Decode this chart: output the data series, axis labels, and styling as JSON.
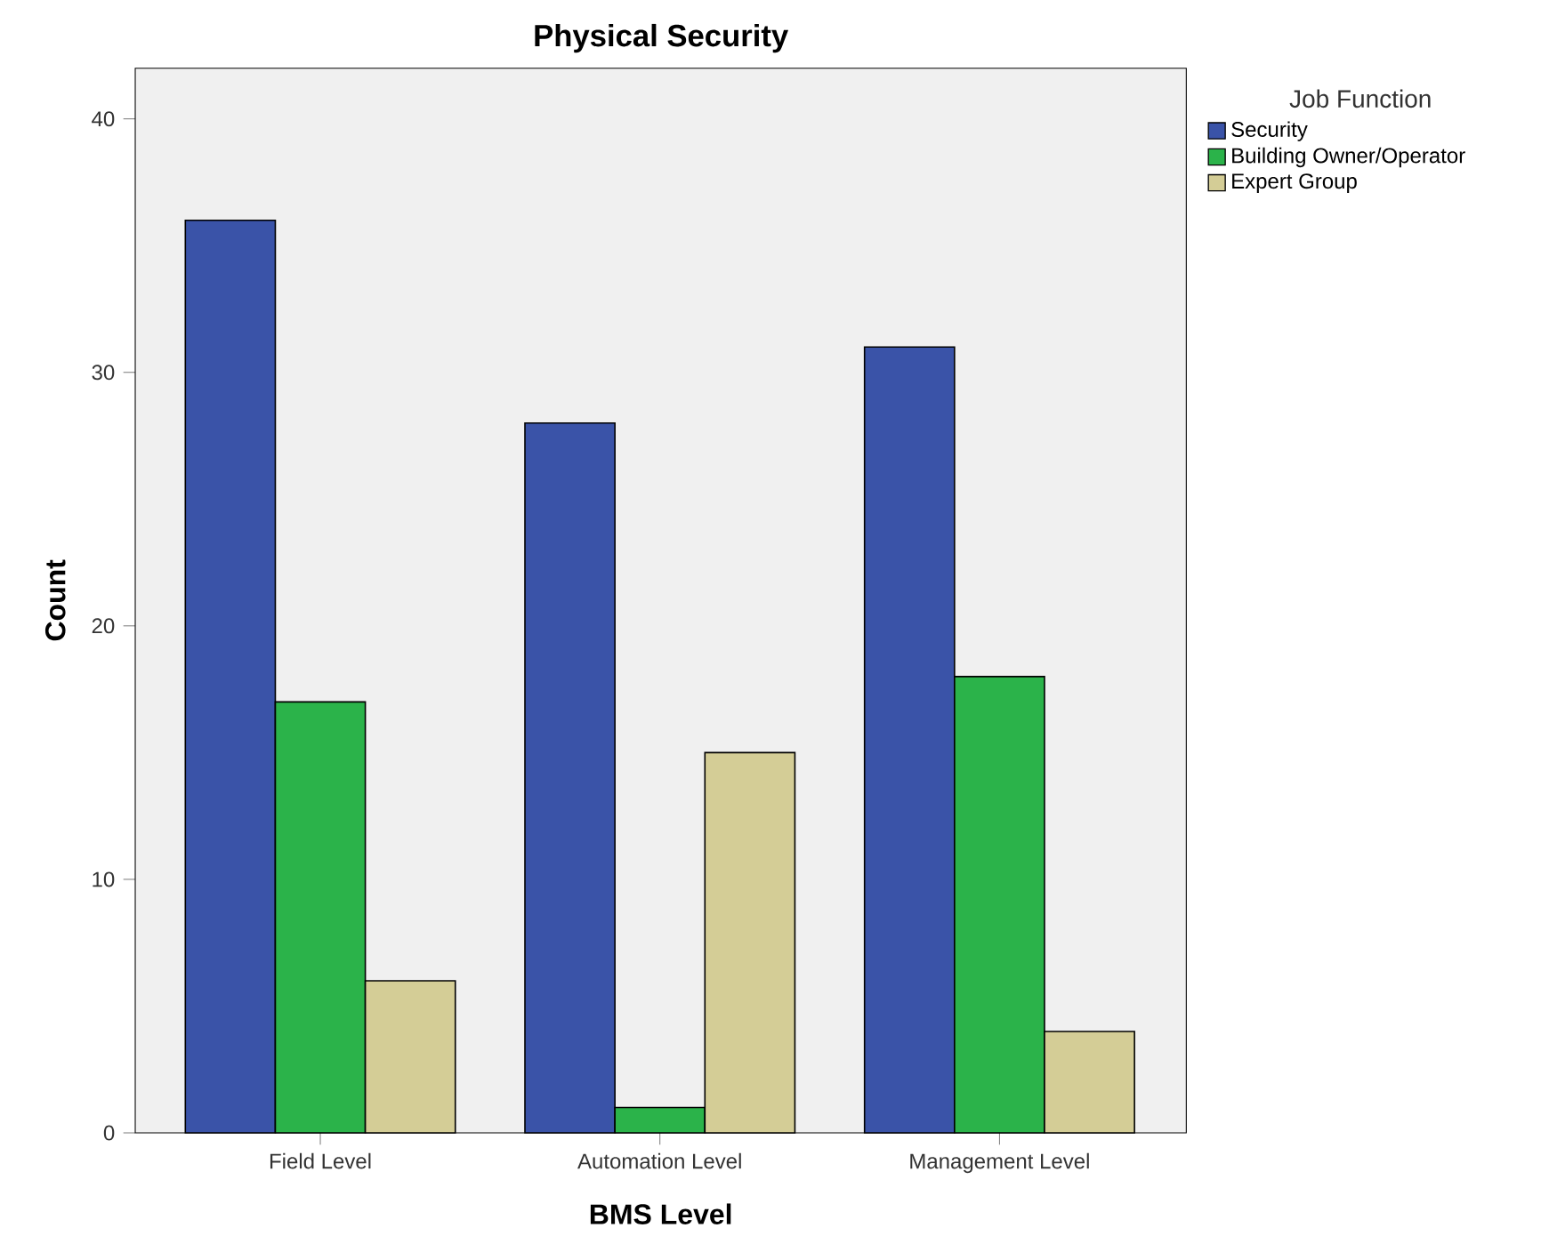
{
  "chart_data": {
    "type": "bar",
    "title": "Physical Security",
    "xlabel": "BMS Level",
    "ylabel": "Count",
    "legend_title": "Job Function",
    "categories": [
      "Field Level",
      "Automation Level",
      "Management Level"
    ],
    "series": [
      {
        "name": "Security",
        "color": "#3a53a8",
        "values": [
          36,
          28,
          31
        ]
      },
      {
        "name": "Building Owner/Operator",
        "color": "#2bb34a",
        "values": [
          17,
          1,
          18
        ]
      },
      {
        "name": "Expert Group",
        "color": "#d4cd96",
        "values": [
          6,
          15,
          4
        ]
      }
    ],
    "ylim": [
      0,
      42
    ],
    "yticks": [
      0,
      10,
      20,
      30,
      40
    ],
    "grid": false,
    "legend": "top right"
  }
}
